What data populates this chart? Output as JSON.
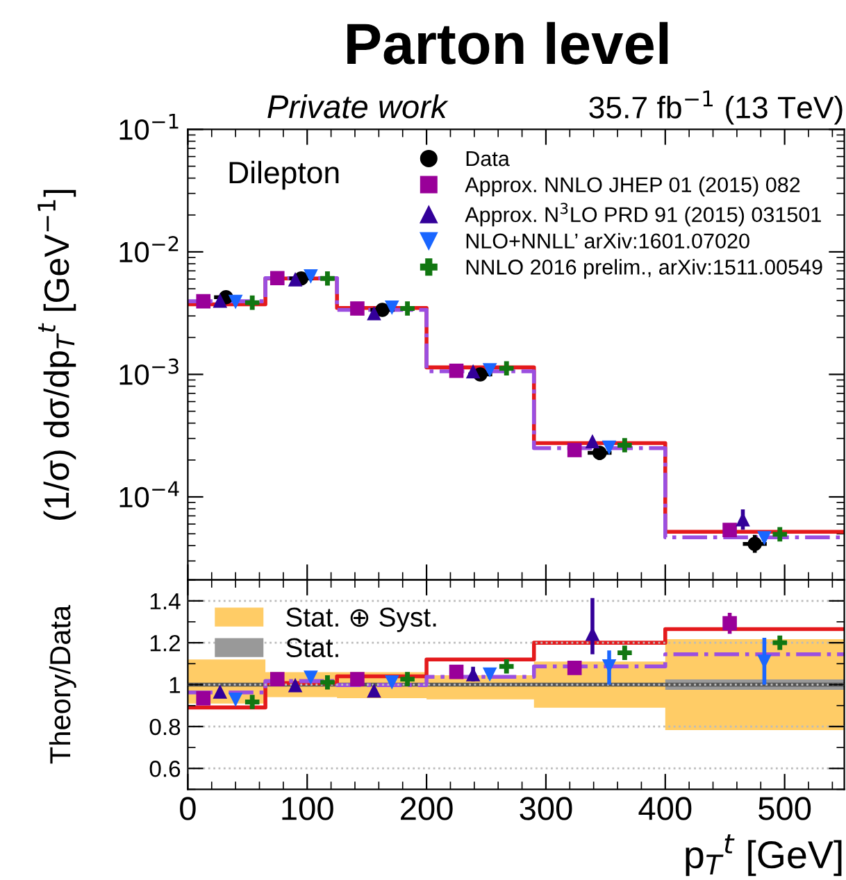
{
  "chart_data": [
    {
      "type": "scatter",
      "title": "Parton level",
      "ylabel": "(1/σ) dσ/dp$_{T}$$^{t}$ [GeV$^{−1}$]",
      "annotations": [
        "Dilepton",
        "Private work",
        "35.7 fb$^{−1}$ (13 TeV)"
      ],
      "xlim": [
        0,
        550
      ],
      "xticks": [
        0,
        100,
        200,
        300,
        400,
        500
      ],
      "ylim": [
        2.1e-05,
        0.1
      ],
      "log": "y",
      "yticks": [
        {
          "value": 0.0001,
          "label": "10$^{−4}$"
        },
        {
          "value": 0.001,
          "label": "10$^{−3}$"
        },
        {
          "value": 0.01,
          "label": "10$^{−2}$"
        },
        {
          "value": 0.1,
          "label": "10$^{−1}$"
        }
      ],
      "tick_labels": "y",
      "legend": "top right",
      "series": [
        {
          "name": "Data",
          "type": "scatter",
          "marker": "circle",
          "color": "#000000",
          "x": [
            32,
            95,
            163,
            245,
            345,
            475
          ],
          "values": [
            0.00426,
            0.00607,
            0.00336,
            0.001,
            0.000229,
            4.13e-05
          ],
          "errors": [
            null,
            null,
            null,
            null,
            [
              0.0002,
              0.00026
            ],
            [
              3.5e-05,
              4.9e-05
            ]
          ],
          "xerrors": [
            10,
            10,
            10,
            10,
            10,
            10
          ]
        },
        {
          "type": "step",
          "color": "#e41a1c",
          "line_style": "solid",
          "x": [
            0,
            65,
            125,
            200,
            290,
            400,
            550
          ],
          "values": [
            0.00373,
            0.00607,
            0.00348,
            0.00114,
            0.000275,
            5.19e-05,
            5.19e-05
          ]
        },
        {
          "type": "step",
          "color": "#9b4fe0",
          "line_style": "dashdot",
          "x": [
            0,
            65,
            125,
            200,
            290,
            400,
            550
          ],
          "values": [
            0.00395,
            0.0061,
            0.00336,
            0.00106,
            0.00025,
            4.67e-05,
            4.67e-05
          ]
        },
        {
          "name": "Approx. NNLO JHEP 01 (2015) 082",
          "type": "scatter",
          "marker": "square",
          "color": "#990099",
          "x": [
            13,
            75,
            142,
            225,
            324,
            454
          ],
          "values": [
            0.00395,
            0.0061,
            0.00345,
            0.00107,
            0.000241,
            5.37e-05
          ]
        },
        {
          "name": "Approx. N$^{3}$LO PRD 91 (2015) 031501",
          "type": "scatter",
          "marker": "triangle",
          "color": "#330099",
          "x": [
            27,
            90,
            156,
            239,
            339,
            465
          ],
          "values": [
            0.004,
            0.00598,
            0.00316,
            0.00106,
            0.000285,
            6.57e-05
          ],
          "errors": [
            null,
            null,
            null,
            null,
            null,
            [
              5.4e-05,
              7.9e-05
            ]
          ]
        },
        {
          "name": "NLO+NNLL’ arXiv:1601.07020",
          "type": "scatter",
          "marker": "triangle_down",
          "color": "#1a66ff",
          "x": [
            40,
            103,
            171,
            253,
            353,
            483
          ],
          "values": [
            0.0039,
            0.0063,
            0.0035,
            0.00108,
            0.000252,
            4.6e-05
          ]
        },
        {
          "name": "NNLO 2016 prelim., arXiv:1511.00549",
          "type": "scatter",
          "marker": "cross",
          "color": "#117711",
          "x": [
            54,
            117,
            184,
            267,
            366,
            496
          ],
          "values": [
            0.00385,
            0.00607,
            0.00345,
            0.00112,
            0.000264,
            4.95e-05
          ]
        }
      ]
    },
    {
      "type": "scatter",
      "xlabel": "p$_{T}$$^{t}$ [GeV]",
      "ylabel": "Theory/Data",
      "xlim": [
        0,
        550
      ],
      "xticks": [
        0,
        100,
        200,
        300,
        400,
        500
      ],
      "ylim": [
        0.5,
        1.5
      ],
      "yticks": [
        0.6,
        0.8,
        1,
        1.2,
        1.4
      ],
      "grid": "y",
      "legend": "top left",
      "ref_lines": [
        {
          "axis": "y",
          "value": 1,
          "color": "#555555"
        }
      ],
      "series": [
        {
          "name": "Stat. ⊕ Syst.",
          "type": "step",
          "color": "#ffcc66",
          "x": [
            0,
            65,
            125,
            200,
            290,
            400,
            550
          ],
          "values": [
            null,
            null,
            null,
            null,
            null,
            null,
            null
          ],
          "lower": [
            0.91,
            0.94,
            0.935,
            0.93,
            0.89,
            0.783,
            0.783
          ],
          "upper": [
            1.12,
            1.06,
            1.06,
            1.045,
            1.11,
            1.217,
            1.217
          ]
        },
        {
          "name": "Stat.",
          "type": "step",
          "color": "#999999",
          "x": [
            0,
            65,
            125,
            200,
            290,
            400,
            550
          ],
          "values": [
            null,
            null,
            null,
            null,
            null,
            null,
            null
          ],
          "lower": [
            0.992,
            0.992,
            0.992,
            0.992,
            0.992,
            0.975,
            0.975
          ],
          "upper": [
            1.008,
            1.008,
            1.008,
            1.008,
            1.008,
            1.025,
            1.025
          ]
        },
        {
          "type": "step",
          "color": "#e41a1c",
          "line_style": "solid",
          "x": [
            0,
            65,
            125,
            200,
            290,
            400,
            550
          ],
          "values": [
            0.891,
            1.007,
            1.04,
            1.12,
            1.2,
            1.265,
            1.265
          ]
        },
        {
          "type": "step",
          "color": "#9b4fe0",
          "line_style": "dashdot",
          "x": [
            0,
            65,
            125,
            200,
            290,
            400,
            550
          ],
          "values": [
            0.963,
            1.017,
            0.998,
            1.037,
            1.087,
            1.145,
            1.145
          ]
        },
        {
          "type": "scatter",
          "marker": "square",
          "color": "#990099",
          "x": [
            13,
            75,
            142,
            225,
            324,
            454
          ],
          "values": [
            0.935,
            1.026,
            1.026,
            1.061,
            1.08,
            1.293
          ],
          "errors": [
            null,
            null,
            null,
            null,
            null,
            0.05
          ]
        },
        {
          "type": "scatter",
          "marker": "triangle",
          "color": "#330099",
          "x": [
            27,
            90,
            156,
            239,
            339
          ],
          "values": [
            0.967,
            0.998,
            0.972,
            1.05,
            1.243
          ],
          "errors": [
            null,
            null,
            null,
            0.035,
            [
              1.145,
              1.413
            ]
          ]
        },
        {
          "type": "scatter",
          "marker": "triangle_down",
          "color": "#1a66ff",
          "x": [
            40,
            103,
            171,
            253,
            353,
            483
          ],
          "values": [
            0.928,
            1.033,
            1.011,
            1.048,
            1.087,
            1.109
          ],
          "errors": [
            null,
            null,
            null,
            0.02,
            [
              1.0,
              1.163
            ],
            [
              1.0,
              1.224
            ]
          ]
        },
        {
          "type": "scatter",
          "marker": "cross",
          "color": "#117711",
          "x": [
            54,
            117,
            184,
            267,
            366,
            496
          ],
          "values": [
            0.917,
            1.011,
            1.026,
            1.087,
            1.152,
            1.2
          ]
        }
      ]
    }
  ]
}
